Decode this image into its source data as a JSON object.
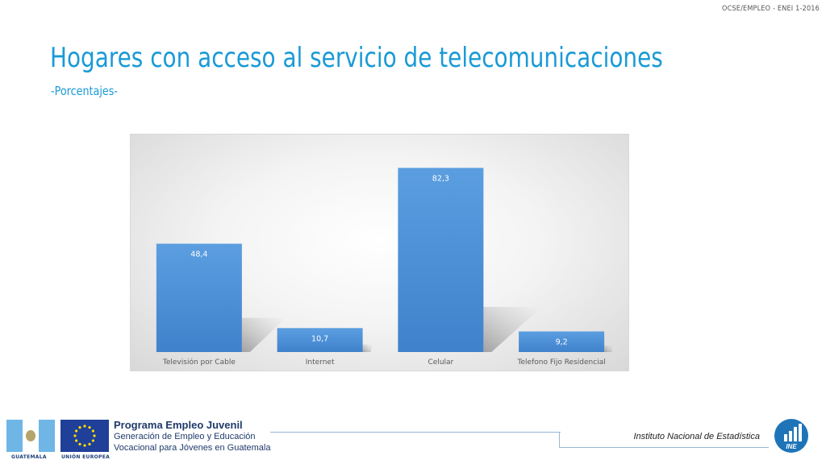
{
  "header": {
    "code": "OCSE/EMPLEO -  ENEI 1-2016"
  },
  "title": "Hogares con acceso al servicio de telecomunicaciones",
  "subtitle": "-Porcentajes-",
  "chart_data": {
    "type": "bar",
    "title": "",
    "xlabel": "",
    "ylabel": "",
    "categories": [
      "Televisión por Cable",
      "Internet",
      "Celular",
      "Telefono Fijo Residencial"
    ],
    "values": [
      48.4,
      10.7,
      82.3,
      9.2
    ],
    "value_labels": [
      "48,4",
      "10,7",
      "82,3",
      "9,2"
    ],
    "ylim": [
      0,
      90
    ],
    "grid": false,
    "legend": "none",
    "bar_color": "#4a8fd6"
  },
  "footer": {
    "flag_left_label": "GUATEMALA",
    "flag_right_label": "UNIÓN EUROPEA",
    "program_title": "Programa Empleo Juvenil",
    "program_line1": "Generación de Empleo y Educación",
    "program_line2": "Vocacional para Jóvenes en Guatemala",
    "institution": "Instituto Nacional de Estadística",
    "logo_text": "INE"
  },
  "colors": {
    "title": "#1a9ad6",
    "bars": "#4a8fd6",
    "footer_text": "#1f3a6b"
  }
}
